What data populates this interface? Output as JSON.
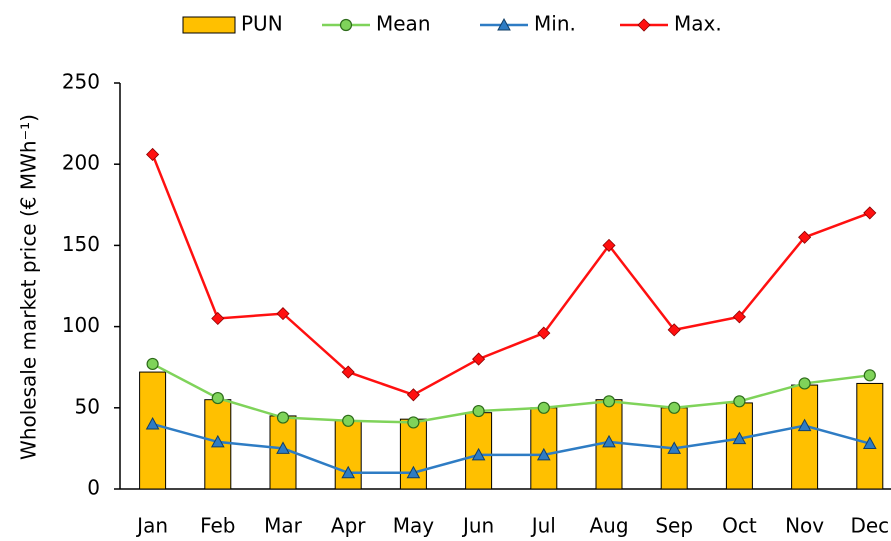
{
  "chart_data": {
    "type": "combo",
    "ylabel": "Wholesale market price (€ MWh⁻¹)",
    "categories": [
      "Jan",
      "Feb",
      "Mar",
      "Apr",
      "May",
      "Jun",
      "Jul",
      "Aug",
      "Sep",
      "Oct",
      "Nov",
      "Dec"
    ],
    "series": [
      {
        "name": "PUN",
        "type": "bar",
        "color": "#ffc000",
        "values": [
          72,
          55,
          45,
          42,
          43,
          47,
          50,
          55,
          50,
          53,
          64,
          65
        ]
      },
      {
        "name": "Mean",
        "type": "line",
        "marker": "circle",
        "color": "#7fd35a",
        "values": [
          77,
          56,
          44,
          42,
          41,
          48,
          50,
          54,
          50,
          54,
          65,
          70
        ]
      },
      {
        "name": "Min.",
        "type": "line",
        "marker": "triangle",
        "color": "#2e7cc4",
        "values": [
          40,
          29,
          25,
          10,
          10,
          21,
          21,
          29,
          25,
          31,
          39,
          28
        ]
      },
      {
        "name": "Max.",
        "type": "line",
        "marker": "diamond",
        "color": "#ff1010",
        "values": [
          206,
          105,
          108,
          72,
          58,
          80,
          96,
          150,
          98,
          106,
          155,
          170
        ]
      }
    ],
    "ylim": [
      0,
      250
    ],
    "yticks": [
      0,
      50,
      100,
      150,
      200,
      250
    ],
    "grid": false,
    "legend": "top"
  }
}
